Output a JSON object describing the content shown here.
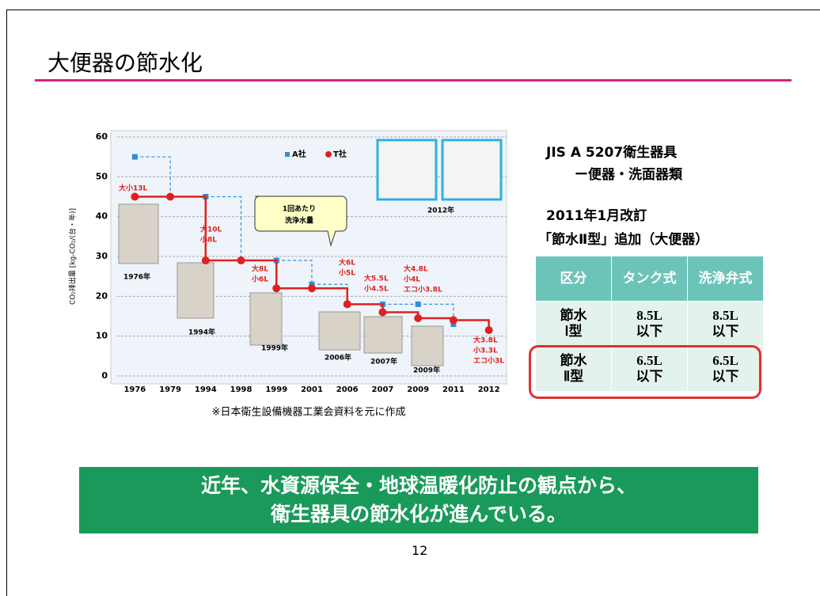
{
  "title": "大便器の節水化",
  "chart_data": {
    "type": "line",
    "y_label": "CO₂排出量 [kg-CO₂/(台・年)]",
    "categories": [
      "1976",
      "1979",
      "1994",
      "1998",
      "1999",
      "2001",
      "2006",
      "2007",
      "2009",
      "2011",
      "2012"
    ],
    "series": [
      {
        "name": "A社",
        "color": "#2f8fd8",
        "marker": "square",
        "values": [
          55,
          45,
          45,
          29,
          29,
          23,
          18,
          18,
          18,
          13,
          null
        ]
      },
      {
        "name": "T社",
        "color": "#e02020",
        "marker": "circle",
        "values": [
          45,
          45,
          29,
          29,
          22,
          22,
          18,
          16,
          14.5,
          14,
          11.5
        ]
      }
    ],
    "ylim": [
      0,
      60
    ],
    "yticks": [
      0,
      10,
      20,
      30,
      40,
      50,
      60
    ],
    "grid": true,
    "annotations": [
      [
        "大小13L"
      ],
      [
        "大10L",
        "小8L"
      ],
      [
        "大8L",
        "小6L"
      ],
      [
        "大6L",
        "小5L"
      ],
      [
        "大5.5L",
        "小4.5L"
      ],
      [
        "大4.8L",
        "小4L",
        "エコ小3.8L"
      ],
      [
        "大3.8L",
        "小3.3L",
        "エコ小3L"
      ]
    ],
    "callout": [
      "1回あたり",
      "洗浄水量"
    ],
    "photo_labels": [
      "1976年",
      "1994年",
      "1999年",
      "2006年",
      "2007年",
      "2009年",
      "2012年"
    ],
    "note": "※日本衛生設備機器工業会資料を元に作成"
  },
  "side": {
    "line1": "JIS A 5207衛生器具",
    "line2": "ー便器・洗面器類",
    "line3": "2011年1月改訂",
    "line4": "「節水Ⅱ型」追加（大便器）"
  },
  "table": {
    "header": [
      "区分",
      "タンク式",
      "洗浄弁式"
    ],
    "rows": [
      [
        "節水 Ⅰ型",
        "8.5L 以下",
        "8.5L 以下"
      ],
      [
        "節水 Ⅱ型",
        "6.5L 以下",
        "6.5L 以下"
      ]
    ]
  },
  "banner": [
    "近年、水資源保全・地球温暖化防止の観点から、",
    "衛生器具の節水化が進んでいる。"
  ],
  "page_number": "12"
}
